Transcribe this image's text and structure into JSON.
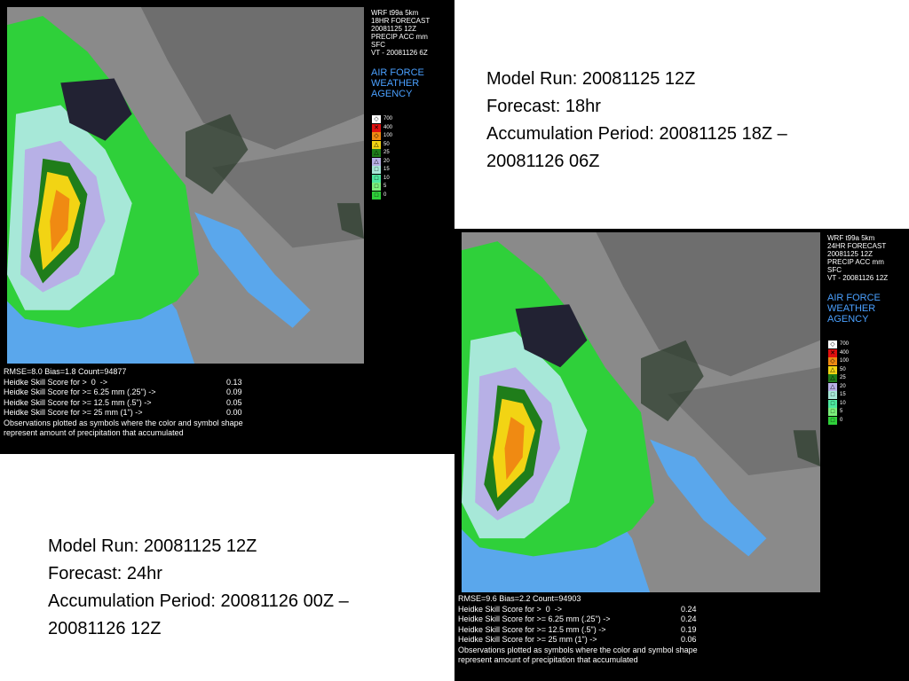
{
  "panels": [
    {
      "header": [
        "WRF t99a 5km",
        "18HR FORECAST",
        "20081125 12Z",
        "PRECIP ACC mm",
        "SFC",
        "VT - 20081126 6Z"
      ],
      "agency": [
        "AIR FORCE",
        "WEATHER",
        "AGENCY"
      ],
      "legend": [
        "700",
        "400",
        "100",
        "50",
        "25",
        "20",
        "15",
        "10",
        "5",
        "0"
      ],
      "summary": "RMSE=8.0 Bias=1.8 Count=94877",
      "scores": [
        {
          "label": "Heidke Skill Score for >  0  ->",
          "value": "0.13"
        },
        {
          "label": "Heidke Skill Score for >= 6.25 mm (.25\") ->",
          "value": "0.09"
        },
        {
          "label": "Heidke Skill Score for >= 12.5 mm (.5\") ->",
          "value": "0.05"
        },
        {
          "label": "Heidke Skill Score for >= 25 mm (1\") ->",
          "value": "0.00"
        }
      ],
      "note": [
        "Observations plotted as symbols where the color and symbol shape",
        "represent amount of precipitation that accumulated"
      ]
    },
    {
      "header": [
        "WRF t99a 5km",
        "24HR FORECAST",
        "20081125 12Z",
        "PRECIP ACC mm",
        "SFC",
        "VT - 20081126 12Z"
      ],
      "agency": [
        "AIR FORCE",
        "WEATHER",
        "AGENCY"
      ],
      "legend": [
        "700",
        "400",
        "100",
        "50",
        "25",
        "20",
        "15",
        "10",
        "5",
        "0"
      ],
      "summary": "RMSE=9.6 Bias=2.2 Count=94903",
      "scores": [
        {
          "label": "Heidke Skill Score for >  0  ->",
          "value": "0.24"
        },
        {
          "label": "Heidke Skill Score for >= 6.25 mm (.25\") ->",
          "value": "0.24"
        },
        {
          "label": "Heidke Skill Score for >= 12.5 mm (.5\") ->",
          "value": "0.19"
        },
        {
          "label": "Heidke Skill Score for >= 25 mm (1\") ->",
          "value": "0.06"
        }
      ],
      "note": [
        "Observations plotted as symbols where the color and symbol shape",
        "represent amount of precipitation that accumulated"
      ]
    }
  ],
  "captions": [
    [
      "Model Run: 20081125 12Z",
      "Forecast: 18hr",
      "Accumulation Period: 20081125 18Z –",
      "20081126 06Z"
    ],
    [
      "Model Run: 20081125 12Z",
      "Forecast: 24hr",
      "Accumulation Period: 20081126 00Z –",
      "20081126 12Z"
    ]
  ]
}
